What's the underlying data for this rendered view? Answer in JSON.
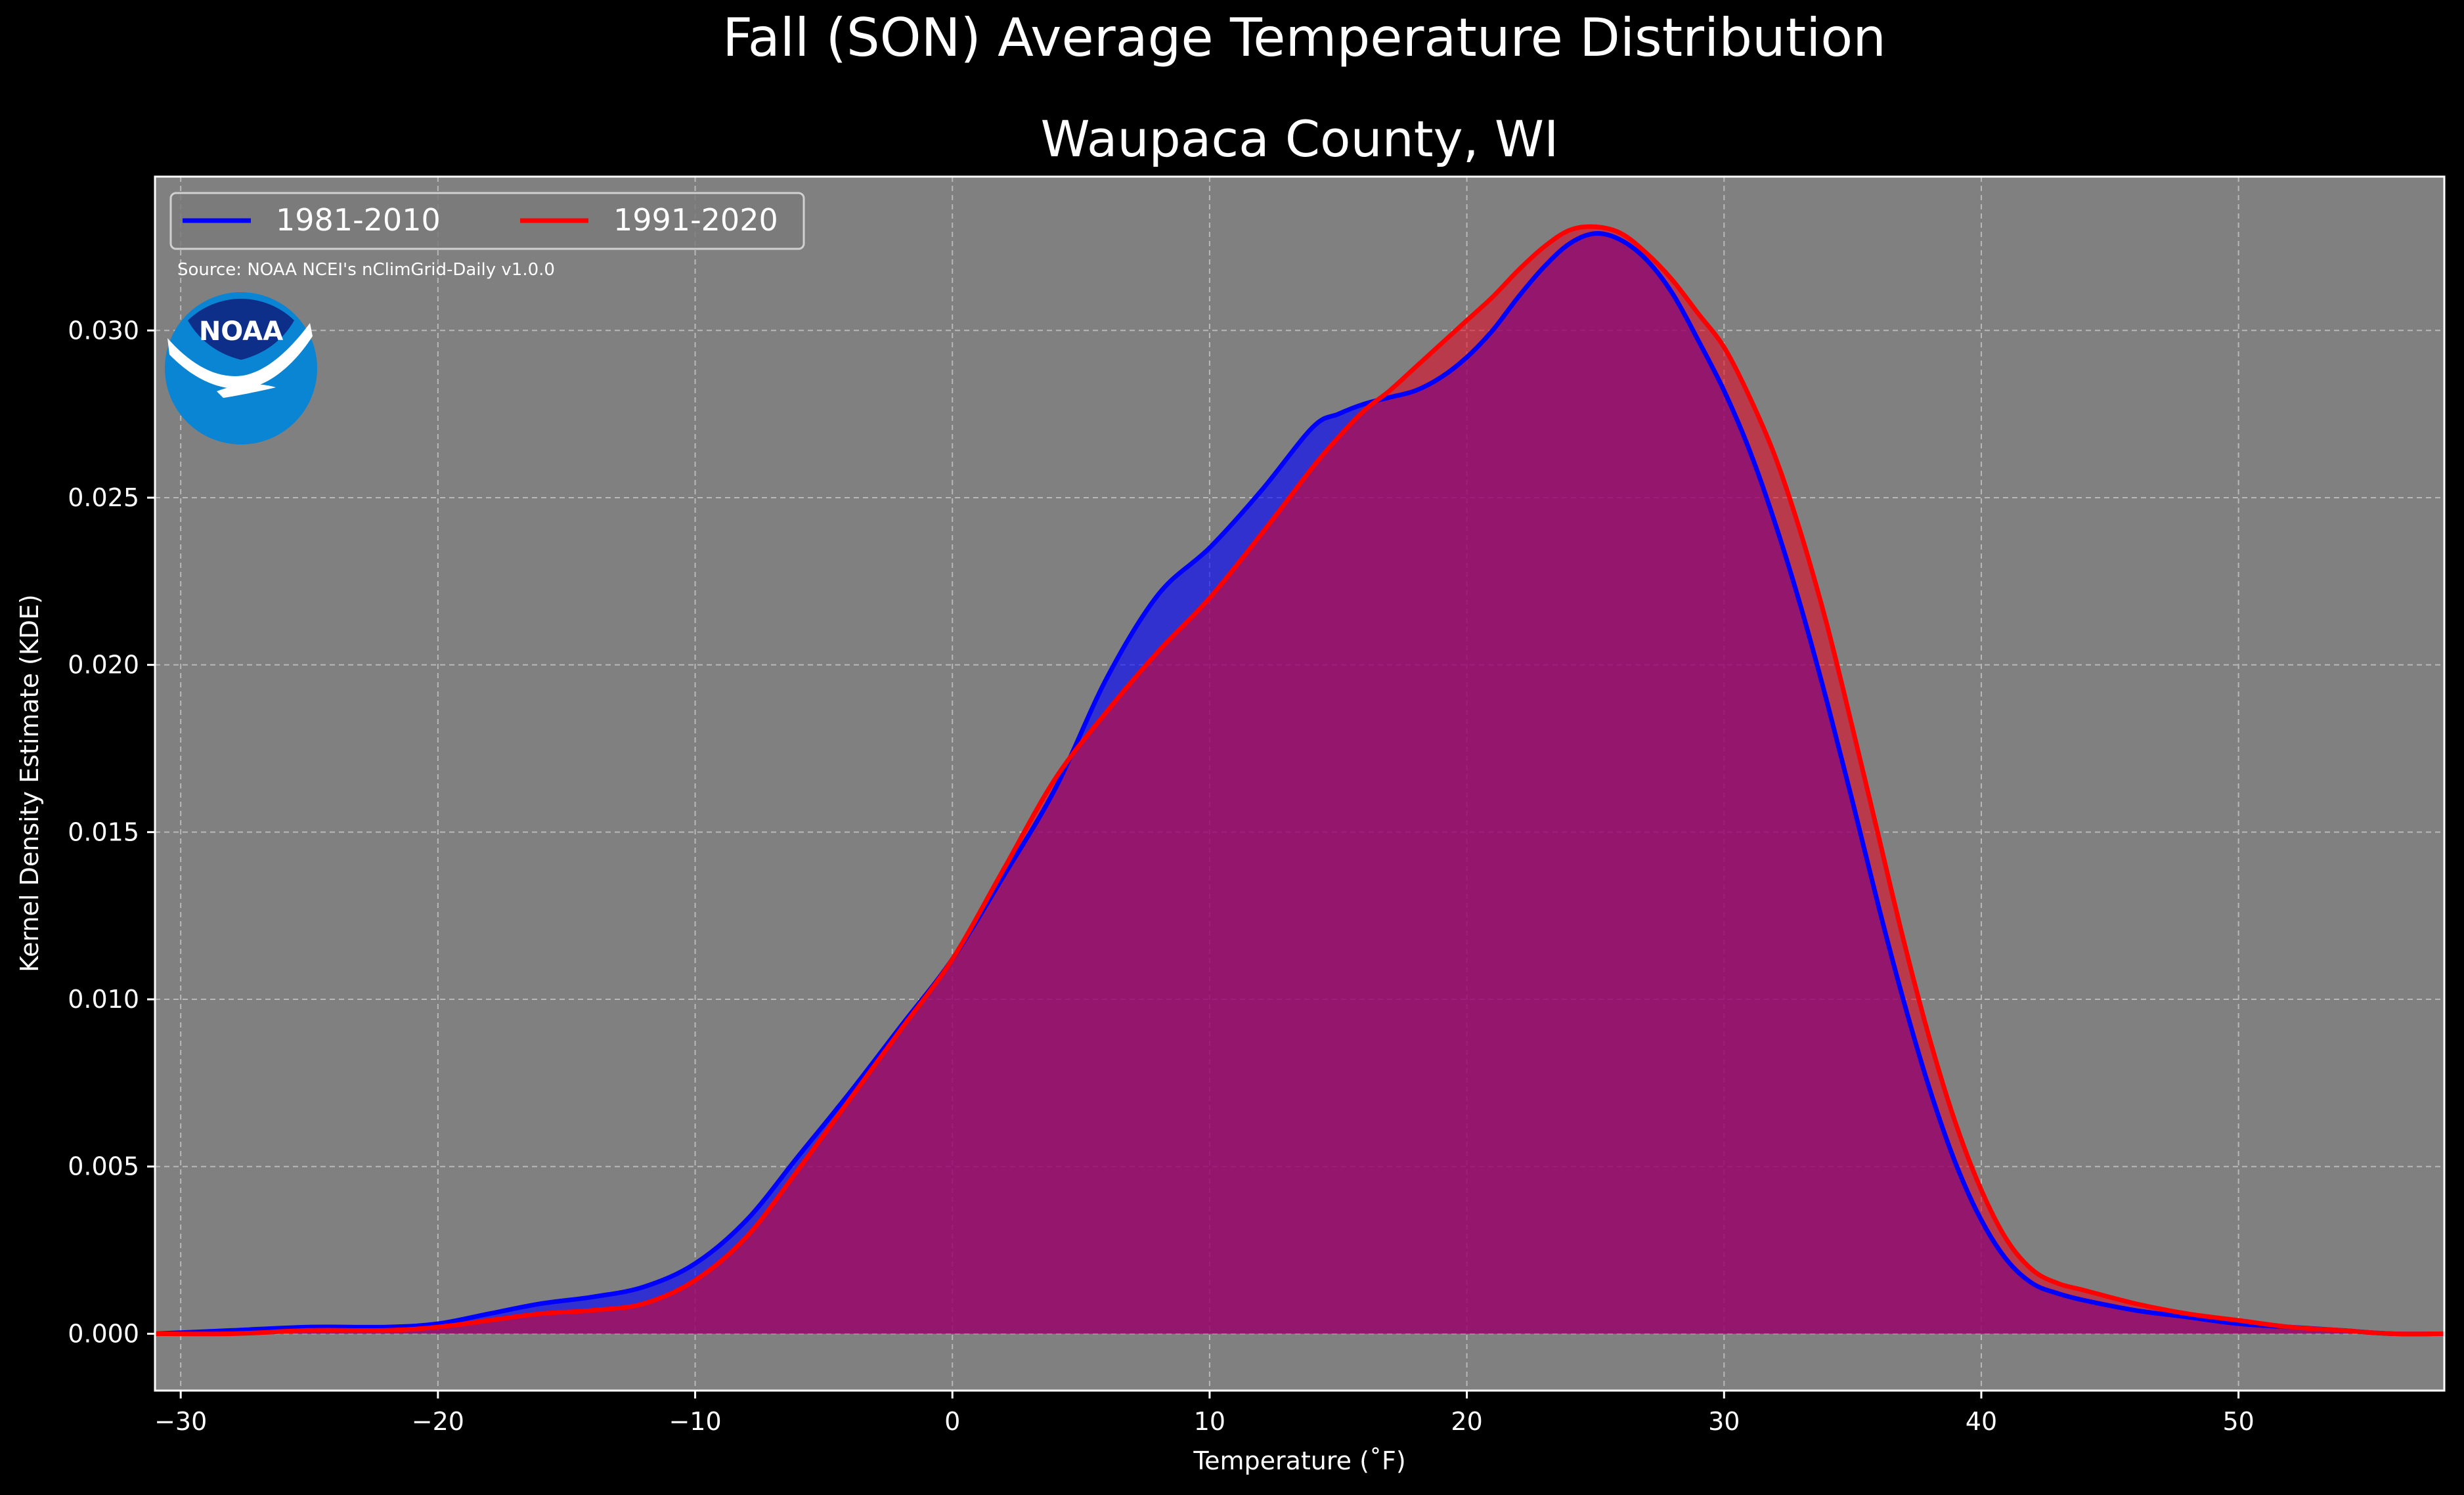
{
  "chart_data": {
    "type": "area",
    "suptitle": "Fall (SON) Average Temperature Distribution",
    "title": "Waupaca County, WI",
    "xlabel": "Temperature (˚F)",
    "ylabel": "Kernel Density Estimate (KDE)",
    "source_note": "Source: NOAA NCEI's nClimGrid-Daily v1.0.0",
    "logo_text": "NOAA",
    "xlim": [
      -31,
      58
    ],
    "ylim": [
      -0.0017,
      0.0346
    ],
    "xticks": [
      -30,
      -20,
      -10,
      0,
      10,
      20,
      30,
      40,
      50
    ],
    "xtick_labels": [
      "−30",
      "−20",
      "−10",
      "0",
      "10",
      "20",
      "30",
      "40",
      "50"
    ],
    "yticks": [
      0.0,
      0.005,
      0.01,
      0.015,
      0.02,
      0.025,
      0.03
    ],
    "ytick_labels": [
      "0.000",
      "0.005",
      "0.010",
      "0.015",
      "0.020",
      "0.025",
      "0.030"
    ],
    "grid": true,
    "legend_position": "top-left",
    "background_color": "#808080",
    "series": [
      {
        "name": "1981-2010",
        "color": "#0000ff",
        "fill_color": "#0000ff",
        "x": [
          -31,
          -28,
          -25,
          -22,
          -20,
          -18,
          -16,
          -14,
          -12,
          -10,
          -8,
          -6,
          -4,
          -2,
          0,
          2,
          4,
          6,
          8,
          10,
          12,
          14,
          15,
          16,
          17,
          18,
          19,
          20,
          21,
          22,
          23,
          24,
          25,
          26,
          27,
          28,
          29,
          30,
          31,
          32,
          33,
          34,
          35,
          36,
          37,
          38,
          39,
          40,
          41,
          42,
          43,
          44,
          46,
          48,
          50,
          52,
          54,
          56,
          58
        ],
        "y": [
          0.0,
          0.0001,
          0.0002,
          0.0002,
          0.0003,
          0.0006,
          0.0009,
          0.0011,
          0.0014,
          0.0021,
          0.0034,
          0.0053,
          0.0072,
          0.0092,
          0.0112,
          0.0137,
          0.0163,
          0.0196,
          0.0221,
          0.0235,
          0.0252,
          0.0271,
          0.0275,
          0.0278,
          0.028,
          0.0282,
          0.0286,
          0.0292,
          0.03,
          0.031,
          0.0319,
          0.0326,
          0.0329,
          0.0327,
          0.0321,
          0.0311,
          0.0297,
          0.0282,
          0.0264,
          0.0242,
          0.0217,
          0.0189,
          0.0159,
          0.0128,
          0.0099,
          0.0073,
          0.0051,
          0.0034,
          0.0022,
          0.0015,
          0.0012,
          0.001,
          0.0007,
          0.0005,
          0.0003,
          0.0002,
          0.0001,
          0.0,
          0.0
        ]
      },
      {
        "name": "1991-2020",
        "color": "#ff0000",
        "fill_color": "#e8001e",
        "x": [
          -31,
          -28,
          -25,
          -22,
          -20,
          -18,
          -16,
          -14,
          -12,
          -10,
          -8,
          -6,
          -4,
          -2,
          0,
          2,
          4,
          6,
          8,
          10,
          12,
          14,
          15,
          16,
          17,
          18,
          19,
          20,
          21,
          22,
          23,
          24,
          25,
          26,
          27,
          28,
          29,
          30,
          31,
          32,
          33,
          34,
          35,
          36,
          37,
          38,
          39,
          40,
          41,
          42,
          43,
          44,
          46,
          48,
          50,
          52,
          54,
          56,
          58
        ],
        "y": [
          0.0,
          0.0,
          0.0001,
          0.0001,
          0.0002,
          0.0004,
          0.0006,
          0.0007,
          0.0009,
          0.0016,
          0.0029,
          0.0049,
          0.007,
          0.0091,
          0.0112,
          0.0139,
          0.0166,
          0.0186,
          0.0204,
          0.022,
          0.0239,
          0.0259,
          0.0268,
          0.0276,
          0.0282,
          0.0289,
          0.0296,
          0.0303,
          0.031,
          0.0318,
          0.0325,
          0.033,
          0.0331,
          0.0329,
          0.0323,
          0.0315,
          0.0305,
          0.0295,
          0.028,
          0.0262,
          0.0239,
          0.0212,
          0.0181,
          0.0149,
          0.0117,
          0.0088,
          0.0063,
          0.0043,
          0.0028,
          0.0019,
          0.0015,
          0.0013,
          0.0009,
          0.0006,
          0.0004,
          0.0002,
          0.0001,
          0.0,
          0.0
        ]
      }
    ]
  }
}
